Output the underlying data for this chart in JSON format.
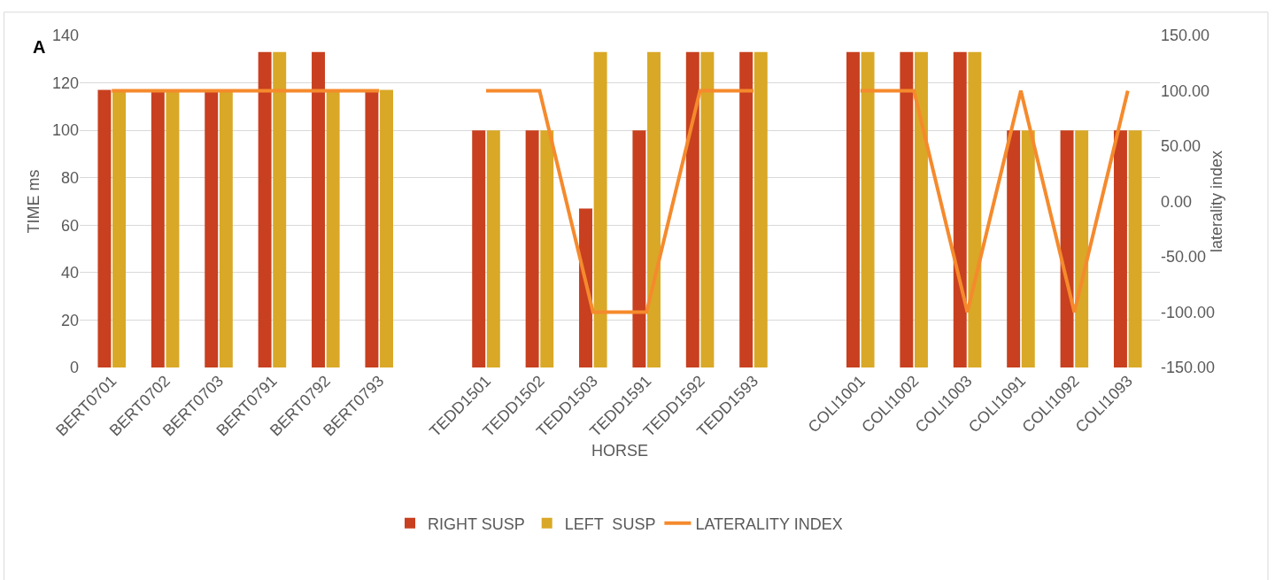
{
  "chart_data": {
    "type": "bar",
    "annotations": [
      "A"
    ],
    "xlabel": "HORSE",
    "ylabel": "TIME ms",
    "y2label": "laterality index",
    "categories": [
      "BERT0701",
      "BERT0702",
      "BERT0703",
      "BERT0791",
      "BERT0792",
      "BERT0793",
      null,
      "TEDD1501",
      "TEDD1502",
      "TEDD1503",
      "TEDD1591",
      "TEDD1592",
      "TEDD1593",
      null,
      "COLI1001",
      "COLI1002",
      "COLI1003",
      "COLI1091",
      "COLI1092",
      "COLI1093"
    ],
    "series": [
      {
        "name": "RIGHT SUSP",
        "color": "#c8401f",
        "values": [
          117,
          117,
          117,
          133,
          133,
          117,
          null,
          100,
          100,
          67,
          100,
          133,
          133,
          null,
          133,
          133,
          133,
          100,
          100,
          100
        ]
      },
      {
        "name": "LEFT  SUSP",
        "color": "#d9a826",
        "values": [
          117,
          117,
          117,
          133,
          117,
          117,
          null,
          100,
          100,
          133,
          133,
          133,
          133,
          null,
          133,
          133,
          133,
          100,
          100,
          100
        ]
      },
      {
        "name": "LATERALITY INDEX",
        "type": "line",
        "axis": "y2",
        "color": "#f58a2d",
        "values": [
          100,
          100,
          100,
          100,
          100,
          100,
          null,
          100,
          100,
          -100,
          -100,
          100,
          100,
          null,
          100,
          100,
          -100,
          100,
          -100,
          100
        ]
      }
    ],
    "ylim": [
      0,
      140
    ],
    "yticks": [
      0,
      20,
      40,
      60,
      80,
      100,
      120,
      140
    ],
    "y2lim": [
      -150,
      150
    ],
    "y2ticks": [
      {
        "value": -150,
        "label": "-150.00"
      },
      {
        "value": -100,
        "label": "-100.00"
      },
      {
        "value": -50,
        "label": "-50.00"
      },
      {
        "value": 0,
        "label": "0.00"
      },
      {
        "value": 50,
        "label": "50.00"
      },
      {
        "value": 100,
        "label": "100.00"
      },
      {
        "value": 150,
        "label": "150.00"
      }
    ],
    "grid": "y",
    "legend": "bottom",
    "marker": "none",
    "line_style": "solid"
  }
}
